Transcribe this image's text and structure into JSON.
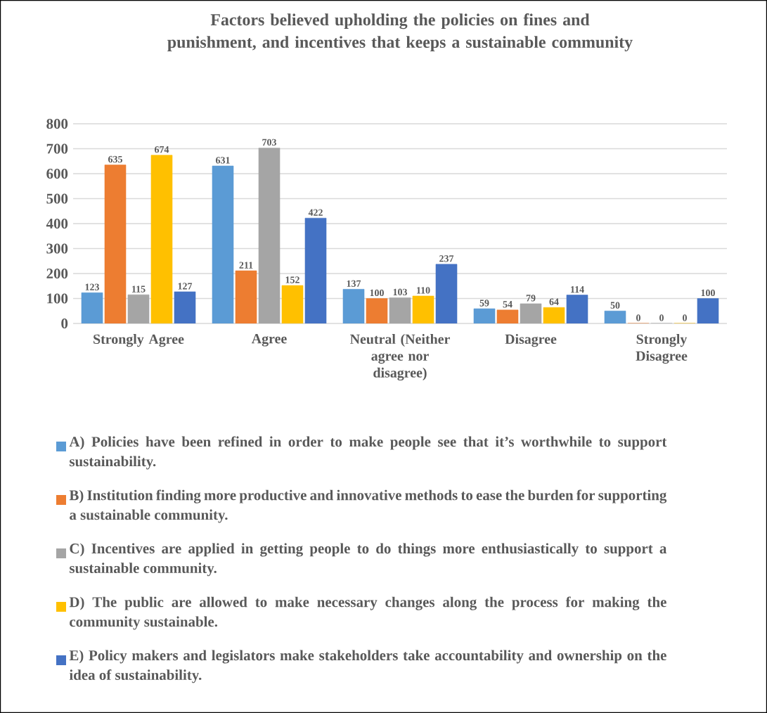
{
  "chart_data": {
    "type": "bar",
    "title": "Factors believed upholding the policies on fines and punishment, and incentives that keeps a sustainable community",
    "categories": [
      "Strongly Agree",
      "Agree",
      "Neutral (Neither agree nor disagree)",
      "Disagree",
      "Strongly Disagree"
    ],
    "series": [
      {
        "name": "A) Policies have been refined in order to make people see that it’s worthwhile to support sustainability.",
        "color": "#5b9bd5",
        "values": [
          123,
          631,
          137,
          59,
          50
        ]
      },
      {
        "name": "B) Institution finding more productive and innovative methods to ease the burden for supporting a sustainable community.",
        "color": "#ed7d31",
        "values": [
          635,
          211,
          100,
          54,
          0
        ]
      },
      {
        "name": "C) Incentives are applied in getting people to do things more enthusiastically to support a sustainable community.",
        "color": "#a5a5a5",
        "values": [
          115,
          703,
          103,
          79,
          0
        ]
      },
      {
        "name": "D) The public are allowed to make necessary changes along the process for making the community sustainable.",
        "color": "#ffc000",
        "values": [
          674,
          152,
          110,
          64,
          0
        ]
      },
      {
        "name": "E) Policy makers and legislators make stakeholders take accountability and ownership on the idea of sustainability.",
        "color": "#4472c4",
        "values": [
          127,
          422,
          237,
          114,
          100
        ]
      }
    ],
    "ylim": [
      0,
      800
    ],
    "yticks": [
      0,
      100,
      200,
      300,
      400,
      500,
      600,
      700,
      800
    ],
    "grid": "y",
    "legend": "bottom",
    "data_labels": true
  }
}
